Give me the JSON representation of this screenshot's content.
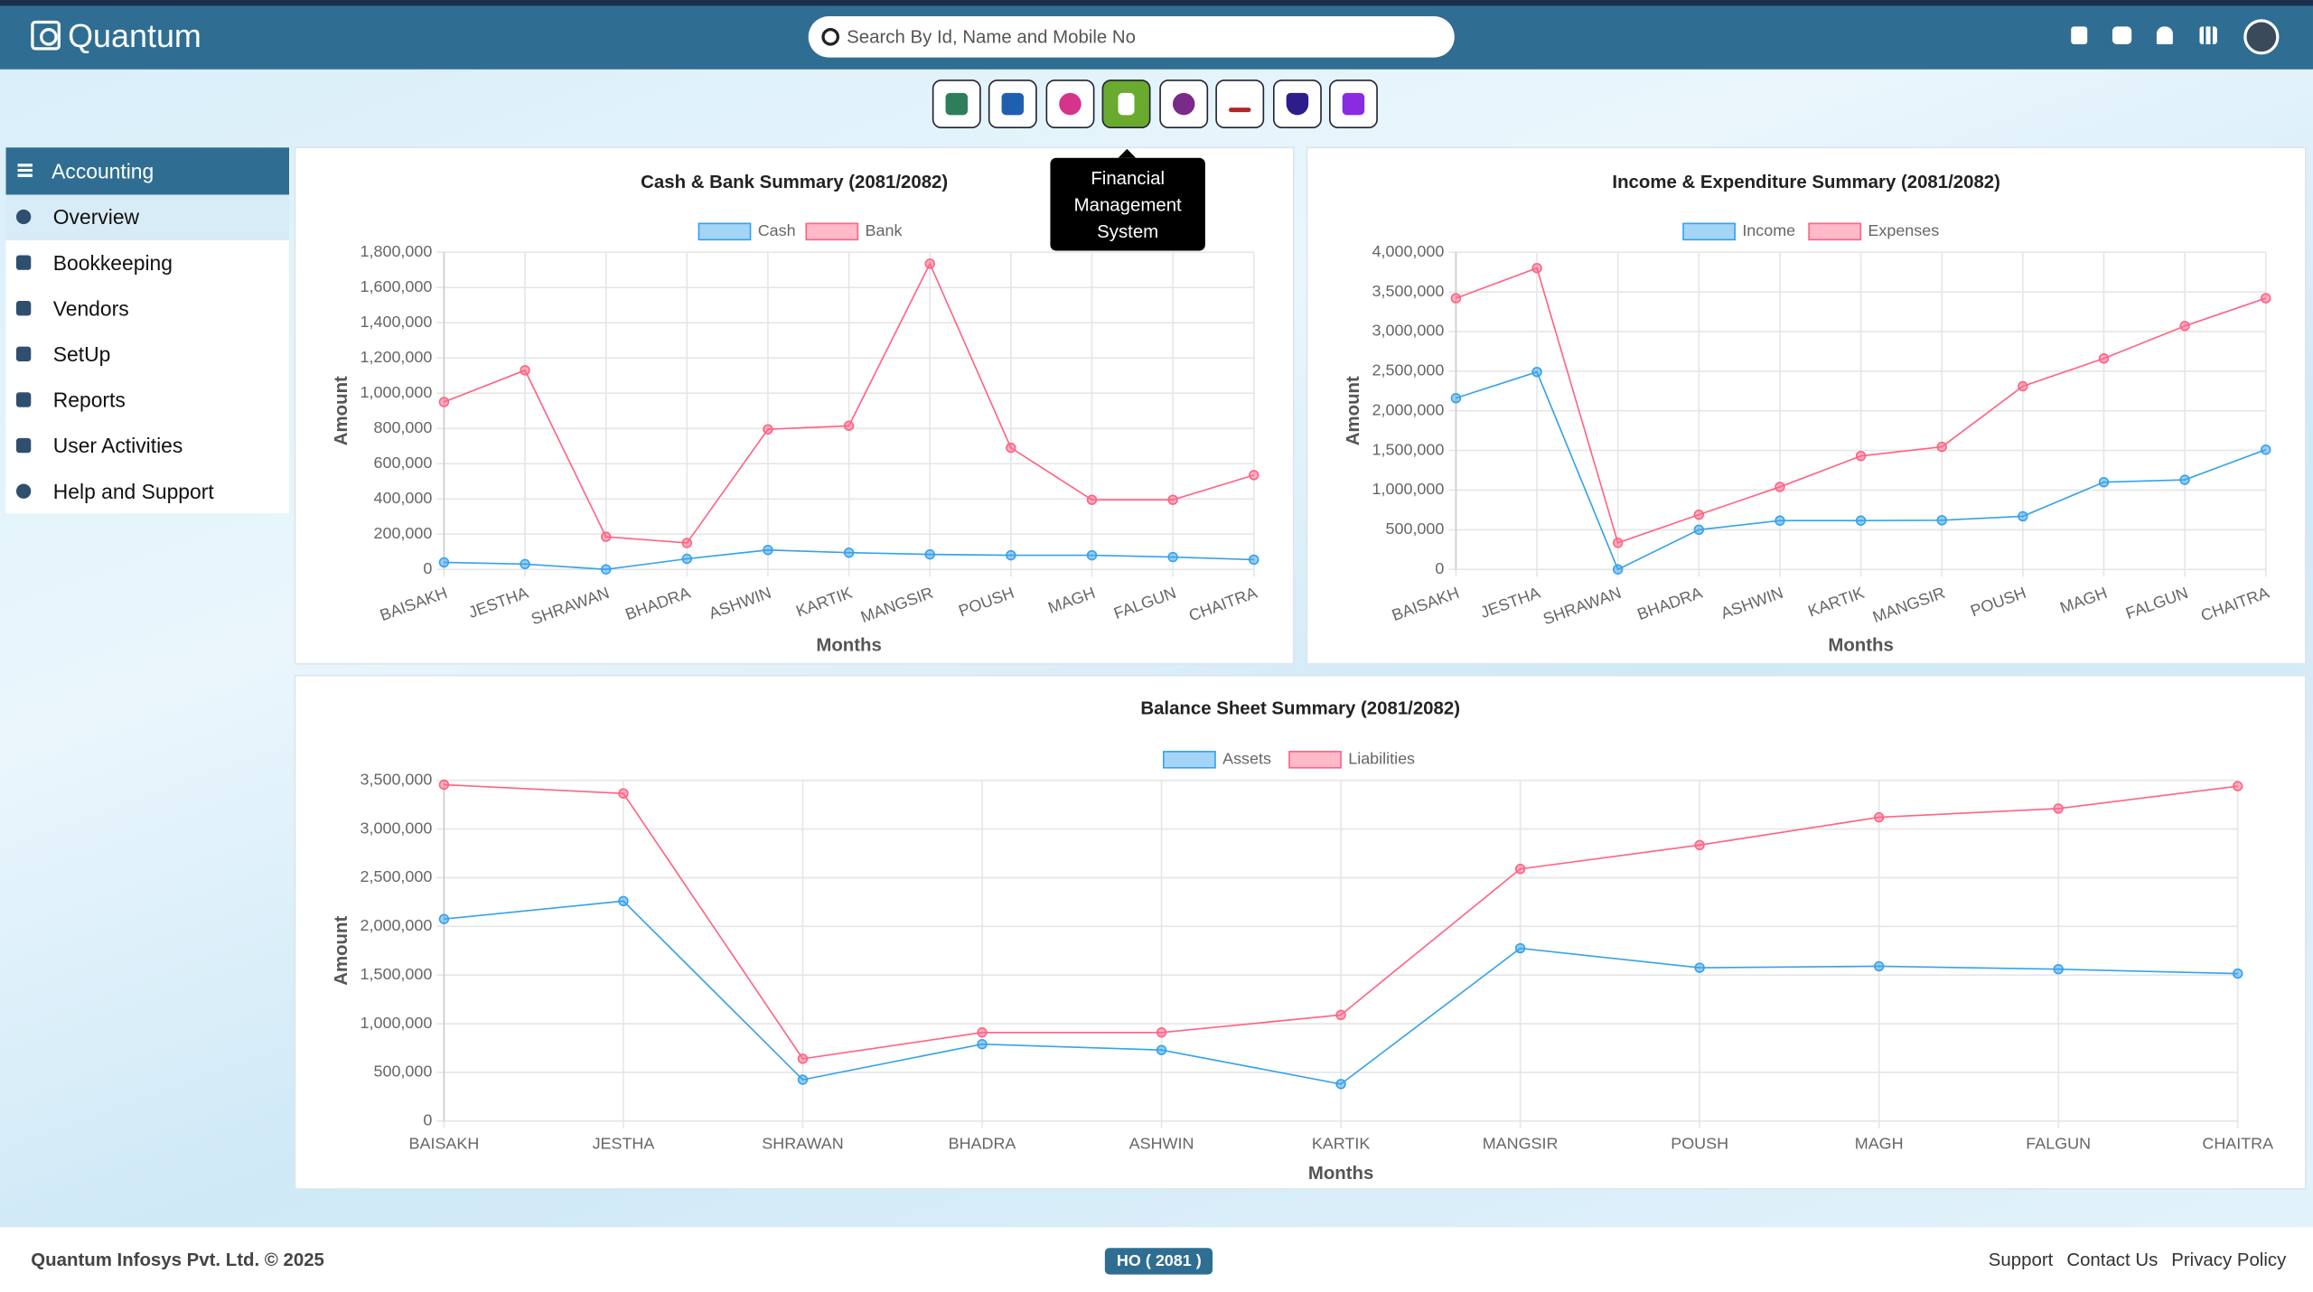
{
  "header": {
    "brand": "Quantum",
    "search_placeholder": "Search By Id, Name and Mobile No"
  },
  "tooltip": "Financial Management System",
  "sidebar": {
    "title": "Accounting",
    "items": [
      "Overview",
      "Bookkeeping",
      "Vendors",
      "SetUp",
      "Reports",
      "User Activities",
      "Help and Support"
    ]
  },
  "charts": [
    {
      "type": "line",
      "title": "Cash & Bank Summary (2081/2082)",
      "xlabel": "Months",
      "ylabel": "Amount",
      "grid": true,
      "categories": [
        "BAISAKH",
        "JESTHA",
        "SHRAWAN",
        "BHADRA",
        "ASHWIN",
        "KARTIK",
        "MANGSIR",
        "POUSH",
        "MAGH",
        "FALGUN",
        "CHAITRA"
      ],
      "series": [
        {
          "name": "Cash",
          "color": "#36a2eb",
          "values": [
            40000,
            30000,
            0,
            60000,
            110000,
            95000,
            85000,
            80000,
            80000,
            70000,
            55000
          ]
        },
        {
          "name": "Bank",
          "color": "#ff6384",
          "values": [
            950000,
            1130000,
            185000,
            150000,
            795000,
            815000,
            1735000,
            690000,
            395000,
            395000,
            535000
          ]
        }
      ],
      "ylim": [
        0,
        1800000
      ],
      "yticks": [
        0,
        {
          "value": 200000,
          "label": "200,000"
        },
        {
          "value": 400000,
          "label": "400,000"
        },
        {
          "value": 600000,
          "label": "600,000"
        },
        {
          "value": 800000,
          "label": "800,000"
        },
        {
          "value": 1000000,
          "label": "1,000,000"
        },
        {
          "value": 1200000,
          "label": "1,200,000"
        },
        {
          "value": 1400000,
          "label": "1,400,000"
        },
        {
          "value": 1600000,
          "label": "1,600,000"
        },
        {
          "value": 1800000,
          "label": "1,800,000"
        }
      ]
    },
    {
      "type": "line",
      "title": "Income & Expenditure Summary (2081/2082)",
      "xlabel": "Months",
      "ylabel": "Amount",
      "grid": true,
      "categories": [
        "BAISAKH",
        "JESTHA",
        "SHRAWAN",
        "BHADRA",
        "ASHWIN",
        "KARTIK",
        "MANGSIR",
        "POUSH",
        "MAGH",
        "FALGUN",
        "CHAITRA"
      ],
      "series": [
        {
          "name": "Income",
          "color": "#36a2eb",
          "values": [
            2160000,
            2490000,
            0,
            500000,
            615000,
            615000,
            620000,
            670000,
            1100000,
            1130000,
            1510000
          ]
        },
        {
          "name": "Expenses",
          "color": "#ff6384",
          "values": [
            3420000,
            3800000,
            335000,
            690000,
            1040000,
            1430000,
            1545000,
            2310000,
            2660000,
            3070000,
            3420000
          ]
        }
      ],
      "ylim": [
        0,
        4000000
      ],
      "yticks": [
        0,
        {
          "value": 500000,
          "label": "500,000"
        },
        {
          "value": 1000000,
          "label": "1,000,000"
        },
        {
          "value": 1500000,
          "label": "1,500,000"
        },
        {
          "value": 2000000,
          "label": "2,000,000"
        },
        {
          "value": 2500000,
          "label": "2,500,000"
        },
        {
          "value": 3000000,
          "label": "3,000,000"
        },
        {
          "value": 3500000,
          "label": "3,500,000"
        },
        {
          "value": 4000000,
          "label": "4,000,000"
        }
      ]
    },
    {
      "type": "line",
      "title": "Balance Sheet Summary (2081/2082)",
      "xlabel": "Months",
      "ylabel": "Amount",
      "grid": true,
      "categories": [
        "BAISAKH",
        "JESTHA",
        "SHRAWAN",
        "BHADRA",
        "ASHWIN",
        "KARTIK",
        "MANGSIR",
        "POUSH",
        "MAGH",
        "FALGUN",
        "CHAITRA"
      ],
      "series": [
        {
          "name": "Assets",
          "color": "#36a2eb",
          "values": [
            2075000,
            2260000,
            425000,
            790000,
            730000,
            380000,
            1775000,
            1575000,
            1590000,
            1560000,
            1515000
          ]
        },
        {
          "name": "Liabilities",
          "color": "#ff6384",
          "values": [
            3455000,
            3365000,
            640000,
            910000,
            910000,
            1090000,
            2590000,
            2835000,
            3120000,
            3210000,
            3440000
          ]
        }
      ],
      "ylim": [
        0,
        3500000
      ],
      "yticks": [
        0,
        {
          "value": 500000,
          "label": "500,000"
        },
        {
          "value": 1000000,
          "label": "1,000,000"
        },
        {
          "value": 1500000,
          "label": "1,500,000"
        },
        {
          "value": 2000000,
          "label": "2,000,000"
        },
        {
          "value": 2500000,
          "label": "2,500,000"
        },
        {
          "value": 3000000,
          "label": "3,000,000"
        },
        {
          "value": 3500000,
          "label": "3,500,000"
        }
      ]
    }
  ],
  "footer": {
    "copyright": "Quantum Infosys Pvt. Ltd. © 2025",
    "badge": "HO ( 2081 )",
    "links": [
      "Support",
      "Contact Us",
      "Privacy Policy"
    ]
  }
}
